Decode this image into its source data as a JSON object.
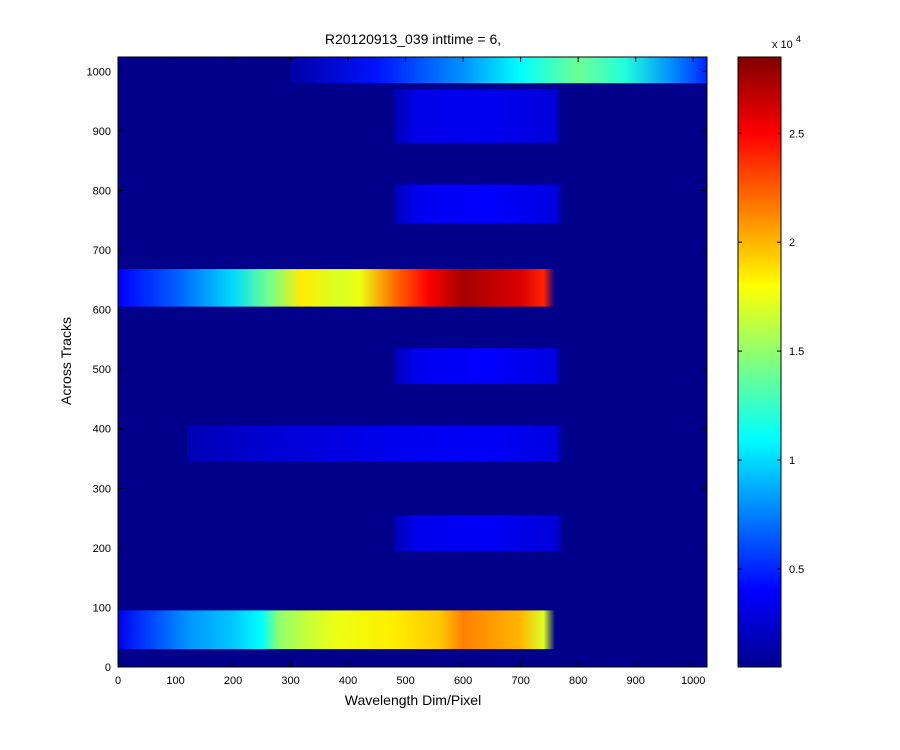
{
  "chart_data": {
    "type": "heatmap",
    "title": "R20120913_039 inttime = 6,",
    "xlabel": "Wavelength Dim/Pixel",
    "ylabel": "Across Tracks",
    "xlim": [
      0,
      1024
    ],
    "ylim": [
      0,
      1024
    ],
    "x_ticks": [
      0,
      100,
      200,
      300,
      400,
      500,
      600,
      700,
      800,
      900,
      1000
    ],
    "y_ticks": [
      0,
      100,
      200,
      300,
      400,
      500,
      600,
      700,
      800,
      900,
      1000
    ],
    "colorbar": {
      "colormap": "jet",
      "range": [
        500,
        28500
      ],
      "ticks": [
        5000,
        10000,
        15000,
        20000,
        25000
      ],
      "tick_labels": [
        "0.5",
        "1",
        "1.5",
        "2",
        "2.5"
      ],
      "multiplier_base": "x 10",
      "multiplier_exp": "4"
    },
    "background_value": 800,
    "bands": [
      {
        "y0": 30,
        "y1": 95,
        "x0": 0,
        "x1": 760,
        "profile": [
          [
            0,
            3500
          ],
          [
            60,
            6000
          ],
          [
            120,
            8000
          ],
          [
            200,
            9500
          ],
          [
            250,
            11000
          ],
          [
            280,
            15000
          ],
          [
            330,
            16500
          ],
          [
            380,
            17500
          ],
          [
            480,
            18500
          ],
          [
            560,
            19500
          ],
          [
            600,
            21500
          ],
          [
            700,
            20000
          ],
          [
            740,
            17000
          ],
          [
            760,
            0
          ]
        ]
      },
      {
        "y0": 195,
        "y1": 255,
        "x0": 480,
        "x1": 775,
        "profile": [
          [
            480,
            2000
          ],
          [
            520,
            3500
          ],
          [
            640,
            3800
          ],
          [
            760,
            3000
          ],
          [
            775,
            0
          ]
        ]
      },
      {
        "y0": 345,
        "y1": 405,
        "x0": 120,
        "x1": 775,
        "profile": [
          [
            120,
            2000
          ],
          [
            260,
            2800
          ],
          [
            380,
            3200
          ],
          [
            500,
            3600
          ],
          [
            640,
            3800
          ],
          [
            760,
            3200
          ],
          [
            775,
            0
          ]
        ]
      },
      {
        "y0": 475,
        "y1": 535,
        "x0": 480,
        "x1": 770,
        "profile": [
          [
            480,
            2000
          ],
          [
            520,
            3600
          ],
          [
            640,
            4000
          ],
          [
            760,
            3200
          ],
          [
            770,
            0
          ]
        ]
      },
      {
        "y0": 605,
        "y1": 668,
        "x0": 0,
        "x1": 760,
        "profile": [
          [
            0,
            4000
          ],
          [
            100,
            6500
          ],
          [
            200,
            10000
          ],
          [
            260,
            14000
          ],
          [
            320,
            18500
          ],
          [
            380,
            17000
          ],
          [
            420,
            17500
          ],
          [
            480,
            22000
          ],
          [
            540,
            25000
          ],
          [
            600,
            27500
          ],
          [
            700,
            26000
          ],
          [
            740,
            24000
          ],
          [
            760,
            0
          ]
        ]
      },
      {
        "y0": 745,
        "y1": 810,
        "x0": 480,
        "x1": 775,
        "profile": [
          [
            480,
            2000
          ],
          [
            520,
            3600
          ],
          [
            640,
            4000
          ],
          [
            760,
            3200
          ],
          [
            775,
            0
          ]
        ]
      },
      {
        "y0": 880,
        "y1": 970,
        "x0": 480,
        "x1": 770,
        "profile": [
          [
            480,
            2000
          ],
          [
            520,
            3400
          ],
          [
            640,
            3600
          ],
          [
            760,
            3000
          ],
          [
            770,
            0
          ]
        ]
      },
      {
        "y0": 980,
        "y1": 1024,
        "x0": 300,
        "x1": 1024,
        "profile": [
          [
            300,
            1500
          ],
          [
            450,
            4500
          ],
          [
            600,
            8000
          ],
          [
            700,
            11000
          ],
          [
            800,
            14000
          ],
          [
            880,
            12000
          ],
          [
            960,
            8000
          ],
          [
            1024,
            5000
          ]
        ]
      }
    ]
  }
}
